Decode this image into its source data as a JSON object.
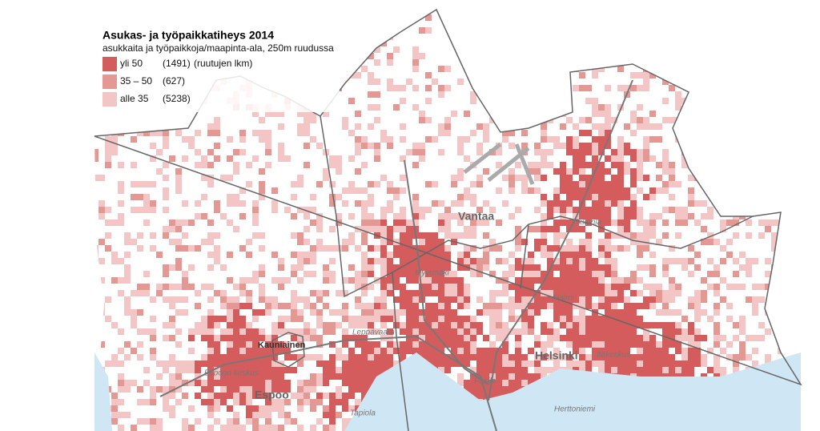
{
  "legend": {
    "title": "Asukas- ja työpaikkatiheys 2014",
    "subtitle": "asukkaita ja työpaikkoja/maapinta-ala, 250m ruudussa",
    "items": [
      {
        "label": "yli 50",
        "count": "(1491)",
        "color": "#d45c5c"
      },
      {
        "label": "35  –  50",
        "count": "(627)",
        "color": "#e39893"
      },
      {
        "label": "alle 35",
        "count": "(5238)",
        "color": "#f3c5c4"
      }
    ],
    "count_note": "(ruutujen lkm)"
  },
  "municipalities": [
    "Vantaa",
    "Helsinki",
    "Espoo"
  ],
  "towns": [
    "Kauniainen"
  ],
  "districts": [
    "Myyrmäki",
    "Malmi",
    "Tikkurila",
    "Leppävaara",
    "Espoon keskus",
    "Pasila",
    "Itäkeskus",
    "Herttoniemi",
    "Tapiola"
  ]
}
